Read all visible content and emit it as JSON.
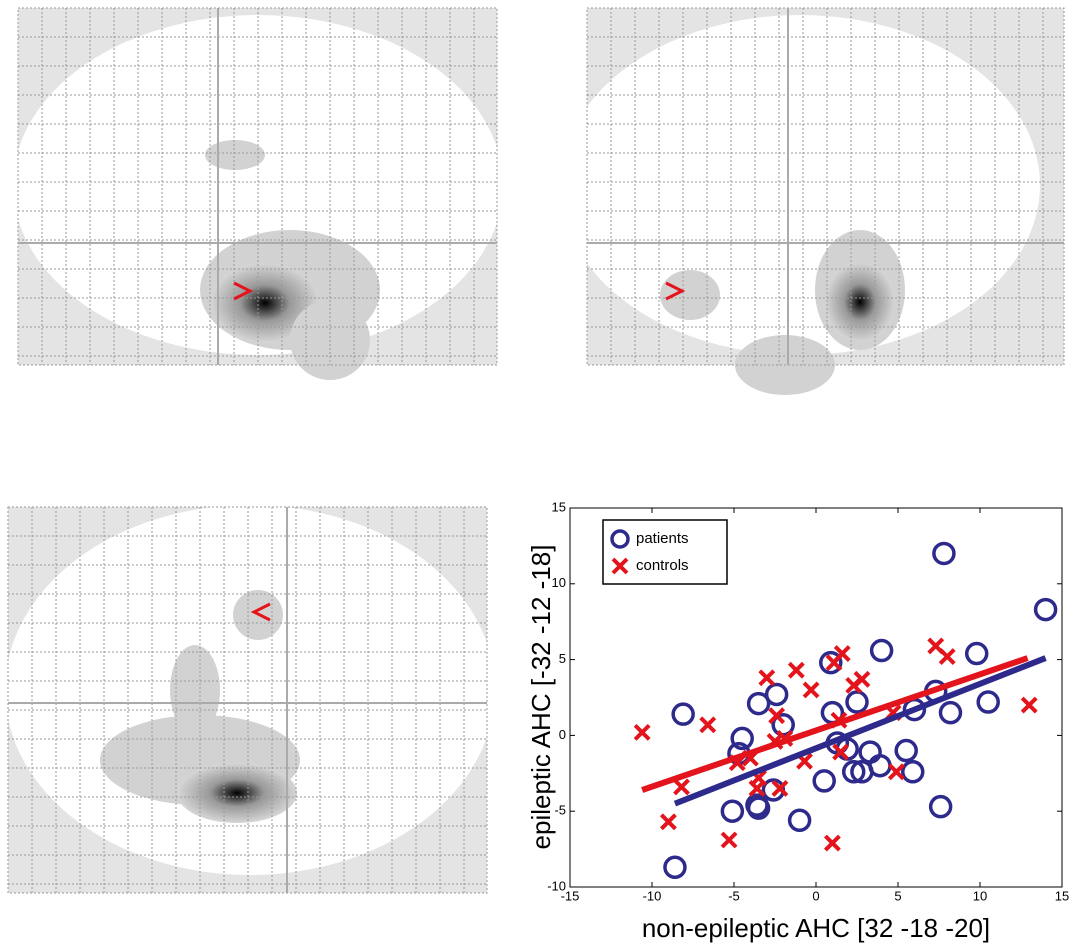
{
  "chart_data": {
    "type": "scatter",
    "xlabel": "non-epileptic AHC [32 -18 -20]",
    "ylabel": "epileptic AHC [-32 -12 -18]",
    "xlim": [
      -15,
      15
    ],
    "ylim": [
      -10,
      15
    ],
    "xticks": [
      -15,
      -10,
      -5,
      0,
      5,
      10,
      15
    ],
    "yticks": [
      -10,
      -5,
      0,
      5,
      10,
      15
    ],
    "legend": "upper left",
    "series": [
      {
        "name": "patients",
        "color": "#2d2a8c",
        "marker": "circle",
        "x": [
          -8.6,
          -8.1,
          -5.1,
          -4.7,
          -4.5,
          -3.6,
          -3.5,
          -3.5,
          -2.6,
          -2.4,
          -2.0,
          -1.0,
          0.5,
          0.9,
          1.0,
          1.3,
          1.9,
          2.3,
          2.5,
          2.8,
          3.3,
          3.9,
          4.0,
          5.5,
          5.9,
          6.0,
          7.3,
          7.6,
          7.8,
          8.2,
          9.8,
          10.5,
          14.0
        ],
        "values": [
          -8.7,
          1.4,
          -5.0,
          -1.2,
          -0.2,
          -4.6,
          -4.8,
          2.1,
          -3.6,
          2.7,
          0.7,
          -5.6,
          -3.0,
          4.8,
          1.5,
          -0.5,
          -0.9,
          -2.4,
          2.2,
          -2.4,
          -1.1,
          -2.0,
          5.6,
          -1.0,
          -2.4,
          1.7,
          2.9,
          -4.7,
          12.0,
          1.5,
          5.4,
          2.2,
          8.3
        ],
        "fit": {
          "x": [
            -8.6,
            14.0
          ],
          "values": [
            -4.5,
            5.1
          ]
        }
      },
      {
        "name": "controls",
        "color": "#e3141b",
        "marker": "x",
        "x": [
          -10.6,
          -9.0,
          -8.2,
          -6.6,
          -5.3,
          -4.8,
          -4.0,
          -3.6,
          -3.5,
          -3.0,
          -2.5,
          -2.4,
          -1.9,
          -2.2,
          -1.2,
          -0.7,
          -0.3,
          1.1,
          1.4,
          1.6,
          1.0,
          1.5,
          2.8,
          2.3,
          4.7,
          4.9,
          7.3,
          8.0,
          13.0
        ],
        "values": [
          0.2,
          -5.7,
          -3.4,
          0.7,
          -6.9,
          -1.8,
          -1.5,
          -3.5,
          -2.8,
          3.8,
          -0.4,
          1.3,
          -0.2,
          -3.5,
          4.3,
          -1.7,
          3.0,
          4.8,
          1.0,
          5.4,
          -7.1,
          -1.1,
          3.7,
          3.3,
          1.5,
          -2.4,
          5.9,
          5.2,
          2.0
        ],
        "fit": {
          "x": [
            -10.6,
            12.9
          ],
          "values": [
            -3.6,
            5.1
          ]
        }
      }
    ]
  }
}
